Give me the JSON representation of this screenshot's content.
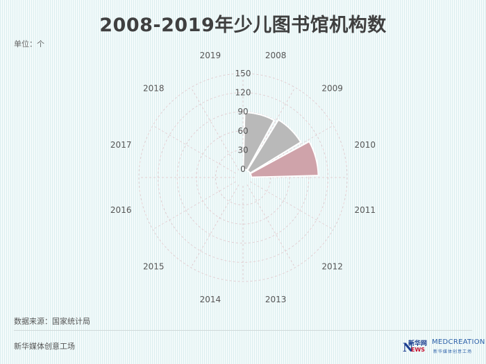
{
  "title": "2008-2019年少儿图书馆机构数",
  "unit_label": "单位：个",
  "source_label": "数据来源：国家统计局",
  "footer_text": "新华媒体创意工场",
  "logos": {
    "xinhua_top": "新华网",
    "xinhua_n": "N",
    "xinhua_ews": "EWS",
    "mc_top": "MEDCREATION",
    "mc_sub": "新华媒体创意工场"
  },
  "colors": {
    "bar_gray": "#b9b9b9",
    "bar_pink": "#cfa3aa",
    "label": "#555555",
    "grid": "#e3cfd2"
  },
  "chart_data": {
    "type": "bar",
    "polar": true,
    "title": "2008-2019年少儿图书馆机构数",
    "categories": [
      "2008",
      "2009",
      "2010",
      "2011",
      "2012",
      "2013",
      "2014",
      "2015",
      "2016",
      "2017",
      "2018",
      "2019"
    ],
    "values": [
      89,
      93,
      105,
      0,
      0,
      0,
      0,
      0,
      0,
      0,
      0,
      0
    ],
    "highlight_index": 2,
    "r_ticks": [
      0,
      30,
      60,
      90,
      120,
      150
    ],
    "rlim": [
      0,
      150
    ],
    "grid": true,
    "legend": "none"
  }
}
